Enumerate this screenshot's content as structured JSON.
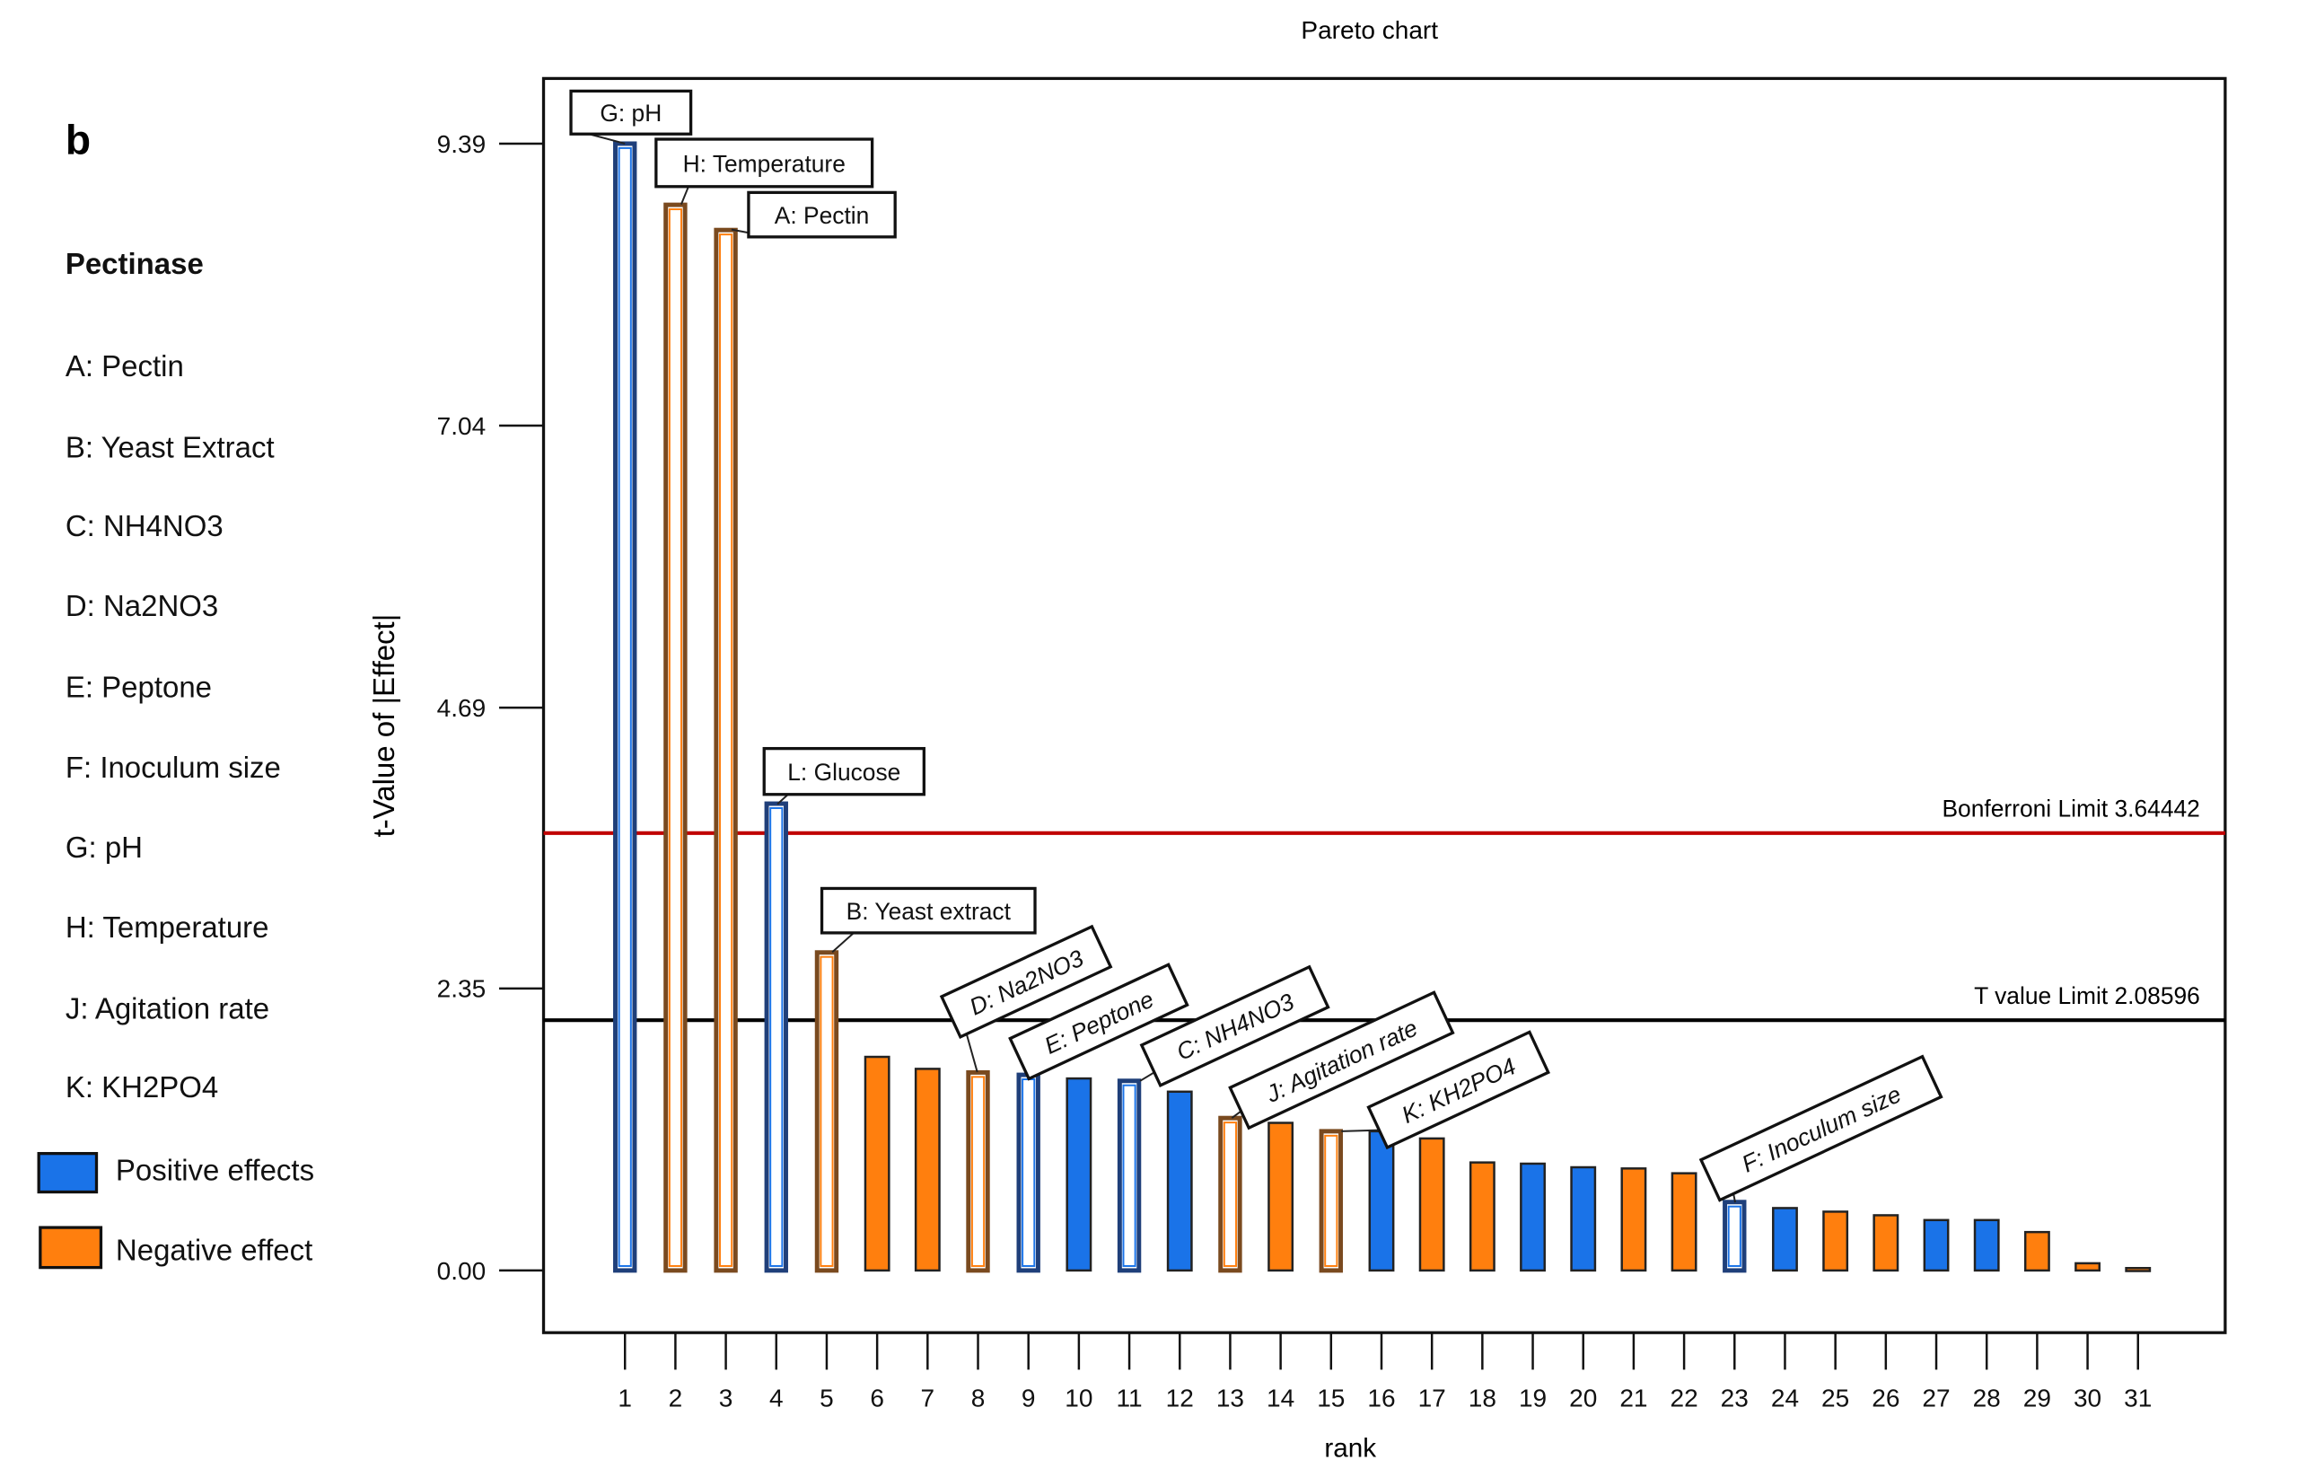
{
  "panel_letter": "b",
  "legend": {
    "title": "Pectinase",
    "factors": [
      "A: Pectin",
      "B: Yeast Extract",
      "C: NH4NO3",
      "D: Na2NO3",
      "E: Peptone",
      "F: Inoculum size",
      "G: pH",
      "H: Temperature",
      "J: Agitation rate",
      "K: KH2PO4"
    ],
    "positive_label": "Positive effects",
    "negative_label": "Negative effect"
  },
  "colors": {
    "positive": "#1a73e8",
    "negative": "#ff7f0e",
    "positive_outline": "#1f3f7a",
    "negative_outline": "#7a4a1f",
    "bonferroni": "#c00000",
    "tlimit": "#000000"
  },
  "chart_data": {
    "type": "bar",
    "title": "Pareto chart",
    "xlabel": "rank",
    "ylabel": "t-Value of |Effect|",
    "ylim": [
      0,
      9.39
    ],
    "yticks": [
      "0.00",
      "2.35",
      "4.69",
      "7.04",
      "9.39"
    ],
    "ytick_values": [
      0,
      2.35,
      4.69,
      7.04,
      9.39
    ],
    "categories": [
      "1",
      "2",
      "3",
      "4",
      "5",
      "6",
      "7",
      "8",
      "9",
      "10",
      "11",
      "12",
      "13",
      "14",
      "15",
      "16",
      "17",
      "18",
      "19",
      "20",
      "21",
      "22",
      "23",
      "24",
      "25",
      "26",
      "27",
      "28",
      "29",
      "30",
      "31"
    ],
    "values": [
      9.39,
      8.88,
      8.67,
      3.89,
      2.65,
      1.78,
      1.68,
      1.65,
      1.63,
      1.6,
      1.58,
      1.49,
      1.27,
      1.23,
      1.16,
      1.16,
      1.1,
      0.9,
      0.89,
      0.86,
      0.85,
      0.81,
      0.57,
      0.52,
      0.49,
      0.46,
      0.42,
      0.42,
      0.32,
      0.06,
      0.02
    ],
    "effect_sign": [
      "+",
      "-",
      "-",
      "+",
      "-",
      "-",
      "-",
      "-",
      "+",
      "+",
      "+",
      "+",
      "-",
      "-",
      "-",
      "+",
      "-",
      "-",
      "+",
      "+",
      "-",
      "-",
      "+",
      "+",
      "-",
      "-",
      "+",
      "+",
      "-",
      "-",
      "-"
    ],
    "annotations": [
      {
        "rank": 1,
        "text": "G: pH"
      },
      {
        "rank": 2,
        "text": "H: Temperature"
      },
      {
        "rank": 3,
        "text": "A: Pectin"
      },
      {
        "rank": 4,
        "text": "L: Glucose"
      },
      {
        "rank": 5,
        "text": "B: Yeast extract"
      },
      {
        "rank": 8,
        "text": "D: Na2NO3"
      },
      {
        "rank": 9,
        "text": "E: Peptone"
      },
      {
        "rank": 11,
        "text": "C: NH4NO3"
      },
      {
        "rank": 13,
        "text": "J: Agitation rate"
      },
      {
        "rank": 15,
        "text": "K: KH2PO4"
      },
      {
        "rank": 23,
        "text": "F: Inoculum size"
      }
    ],
    "reference_lines": [
      {
        "name": "Bonferroni Limit",
        "value": 3.64442,
        "text": "Bonferroni Limit 3.64442"
      },
      {
        "name": "T value Limit",
        "value": 2.08596,
        "text": "T value Limit 2.08596"
      }
    ],
    "grid": false,
    "legend_position": "left"
  }
}
